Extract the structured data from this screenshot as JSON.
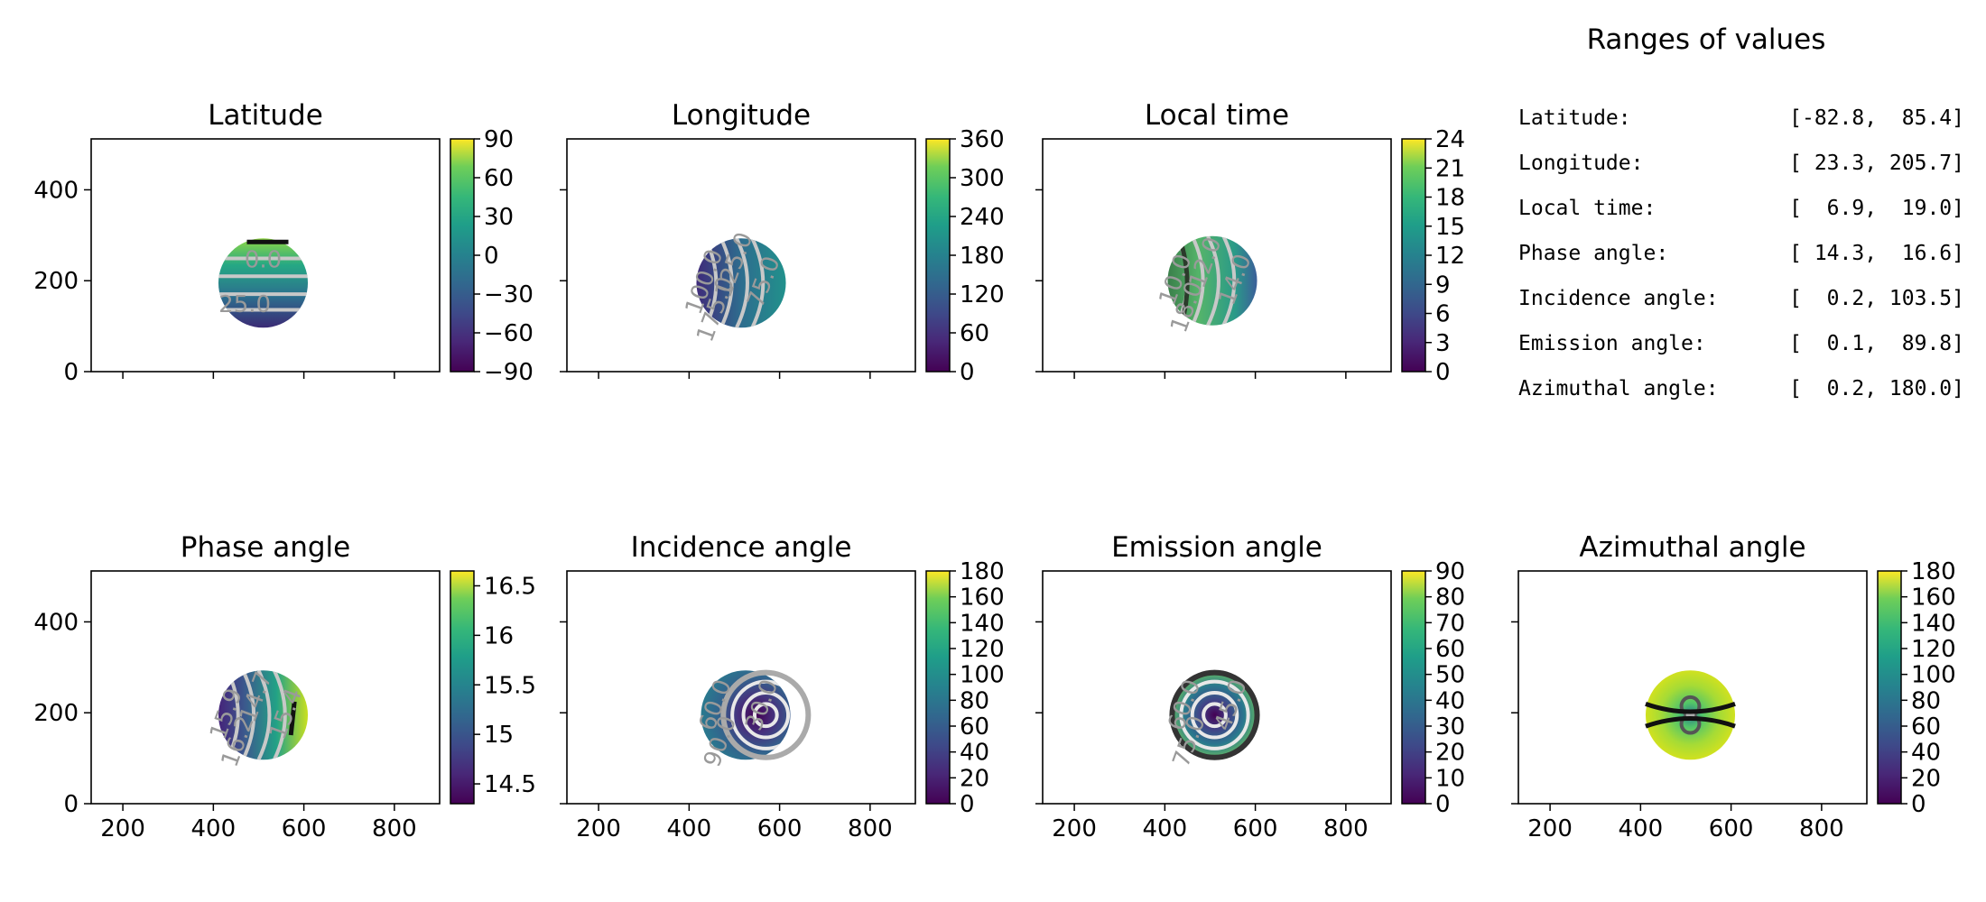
{
  "figure": {
    "ranges_title": "Ranges of values",
    "ranges": [
      {
        "label": "Latitude:",
        "value": "[-82.8,  85.4]"
      },
      {
        "label": "Longitude:",
        "value": "[ 23.3, 205.7]"
      },
      {
        "label": "Local time:",
        "value": "[  6.9,  19.0]"
      },
      {
        "label": "Phase angle:",
        "value": "[ 14.3,  16.6]"
      },
      {
        "label": "Incidence angle:",
        "value": "[  0.2, 103.5]"
      },
      {
        "label": "Emission angle:",
        "value": "[  0.1,  89.8]"
      },
      {
        "label": "Azimuthal angle:",
        "value": "[  0.2, 180.0]"
      }
    ]
  },
  "chart_data": [
    {
      "type": "heatmap",
      "title": "Latitude",
      "xlim": [
        130,
        900
      ],
      "ylim": [
        0,
        512
      ],
      "xticks": [
        200,
        400,
        600,
        800
      ],
      "xtick_labels": false,
      "yticks": [
        0,
        200,
        400
      ],
      "ytick_labels": true,
      "colorbar": {
        "range": [
          -90,
          90
        ],
        "ticks": [
          -90,
          -60,
          -30,
          0,
          30,
          60,
          90
        ]
      },
      "disc": {
        "cx": 510,
        "cy": 195,
        "r": 95
      },
      "contours": [
        "25.0",
        "0.0"
      ],
      "pattern": "horizontal"
    },
    {
      "type": "heatmap",
      "title": "Longitude",
      "xlim": [
        130,
        900
      ],
      "ylim": [
        0,
        512
      ],
      "xticks": [
        200,
        400,
        600,
        800
      ],
      "xtick_labels": false,
      "yticks": [
        0,
        200,
        400
      ],
      "ytick_labels": false,
      "colorbar": {
        "range": [
          0,
          360
        ],
        "ticks": [
          0,
          60,
          120,
          180,
          240,
          300,
          360
        ]
      },
      "disc": {
        "cx": 515,
        "cy": 195,
        "r": 95
      },
      "contours": [
        "175.0",
        "100.0",
        "125.0",
        "75.0"
      ],
      "pattern": "vertical"
    },
    {
      "type": "heatmap",
      "title": "Local time",
      "xlim": [
        130,
        900
      ],
      "ylim": [
        0,
        512
      ],
      "xticks": [
        200,
        400,
        600,
        800
      ],
      "xtick_labels": false,
      "yticks": [
        0,
        200,
        400
      ],
      "ytick_labels": false,
      "colorbar": {
        "range": [
          0,
          24
        ],
        "ticks": [
          0,
          3,
          6,
          9,
          12,
          15,
          18,
          21,
          24
        ]
      },
      "disc": {
        "cx": 505,
        "cy": 200,
        "r": 95
      },
      "contours": [
        "18.0",
        "10.0",
        "12.0",
        "14.0"
      ],
      "pattern": "vertical"
    },
    {
      "type": "heatmap",
      "title": "Phase angle",
      "xlim": [
        130,
        900
      ],
      "ylim": [
        0,
        512
      ],
      "xticks": [
        200,
        400,
        600,
        800
      ],
      "xtick_labels": true,
      "yticks": [
        0,
        200,
        400
      ],
      "ytick_labels": true,
      "colorbar": {
        "range": [
          14.3,
          16.65
        ],
        "ticks": [
          14.5,
          15.0,
          15.5,
          16.0,
          16.5
        ]
      },
      "disc": {
        "cx": 510,
        "cy": 195,
        "r": 95
      },
      "contours": [
        "16.2",
        "15.9",
        "14.7",
        "15.4"
      ],
      "pattern": "vertical"
    },
    {
      "type": "heatmap",
      "title": "Incidence angle",
      "xlim": [
        130,
        900
      ],
      "ylim": [
        0,
        512
      ],
      "xticks": [
        200,
        400,
        600,
        800
      ],
      "xtick_labels": true,
      "yticks": [
        0,
        200,
        400
      ],
      "ytick_labels": false,
      "colorbar": {
        "range": [
          0,
          180
        ],
        "ticks": [
          0,
          20,
          40,
          60,
          80,
          100,
          120,
          140,
          160,
          180
        ]
      },
      "disc": {
        "cx": 525,
        "cy": 195,
        "r": 95
      },
      "contours": [
        "90.0",
        "60.0",
        "30.0"
      ],
      "pattern": "concentric"
    },
    {
      "type": "heatmap",
      "title": "Emission angle",
      "xlim": [
        130,
        900
      ],
      "ylim": [
        0,
        512
      ],
      "xticks": [
        200,
        400,
        600,
        800
      ],
      "xtick_labels": true,
      "yticks": [
        0,
        200,
        400
      ],
      "ytick_labels": false,
      "colorbar": {
        "range": [
          0,
          90
        ],
        "ticks": [
          0,
          10,
          20,
          30,
          40,
          50,
          60,
          70,
          80,
          90
        ]
      },
      "disc": {
        "cx": 510,
        "cy": 195,
        "r": 95
      },
      "contours": [
        "75.0",
        "60.0",
        "45.0"
      ],
      "pattern": "concentric"
    },
    {
      "type": "heatmap",
      "title": "Azimuthal angle",
      "xlim": [
        130,
        900
      ],
      "ylim": [
        0,
        512
      ],
      "xticks": [
        200,
        400,
        600,
        800
      ],
      "xtick_labels": true,
      "yticks": [
        0,
        200,
        400
      ],
      "ytick_labels": false,
      "colorbar": {
        "range": [
          0,
          180
        ],
        "ticks": [
          0,
          20,
          40,
          60,
          80,
          100,
          120,
          140,
          160,
          180
        ]
      },
      "disc": {
        "cx": 510,
        "cy": 195,
        "r": 95
      },
      "contours": [],
      "pattern": "azimuthal"
    }
  ]
}
